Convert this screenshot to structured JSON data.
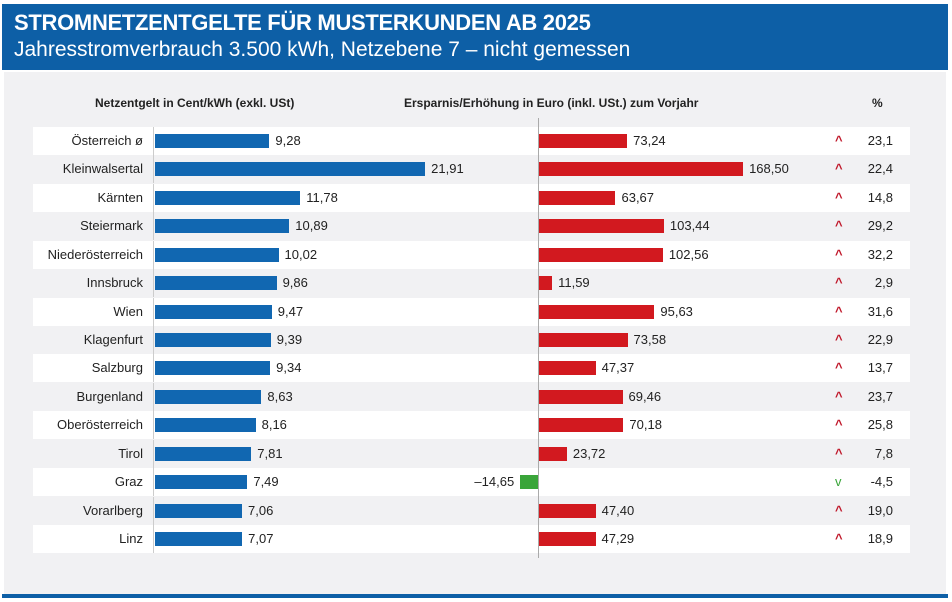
{
  "chart_data": {
    "type": "bar",
    "title": "STROMNETZENTGELTE FÜR MUSTERKUNDEN AB 2025",
    "subtitle": "Jahresstromverbrauch 3.500 kWh, Netzebene 7 – nicht gemessen",
    "column_headers": [
      "Netzentgelt in Cent/kWh (exkl. USt)",
      "Ersparnis/Erhöhung in Euro (inkl. USt.) zum Vorjahr",
      "%"
    ],
    "categories": [
      "Österreich ø",
      "Kleinwalsertal",
      "Kärnten",
      "Steiermark",
      "Niederösterreich",
      "Innsbruck",
      "Wien",
      "Klagenfurt",
      "Salzburg",
      "Burgenland",
      "Oberösterreich",
      "Tirol",
      "Graz",
      "Vorarlberg",
      "Linz"
    ],
    "series": [
      {
        "name": "Netzentgelt in Cent/kWh (exkl. USt)",
        "values": [
          9.28,
          21.91,
          11.78,
          10.89,
          10.02,
          9.86,
          9.47,
          9.39,
          9.34,
          8.63,
          8.16,
          7.81,
          7.49,
          7.06,
          7.07
        ],
        "labels": [
          "9,28",
          "21,91",
          "11,78",
          "10,89",
          "10,02",
          "9,86",
          "9,47",
          "9,39",
          "9,34",
          "8,63",
          "8,16",
          "7,81",
          "7,49",
          "7,06",
          "7,07"
        ],
        "color": "#1167b1"
      },
      {
        "name": "Ersparnis/Erhöhung in Euro (inkl. USt.) zum Vorjahr",
        "values": [
          73.24,
          168.5,
          63.67,
          103.44,
          102.56,
          11.59,
          95.63,
          73.58,
          47.37,
          69.46,
          70.18,
          23.72,
          -14.65,
          47.4,
          47.29
        ],
        "labels": [
          "73,24",
          "168,50",
          "63,67",
          "103,44",
          "102,56",
          "11,59",
          "95,63",
          "73,58",
          "47,37",
          "69,46",
          "70,18",
          "23,72",
          "–14,65",
          "47,40",
          "47,29"
        ],
        "color_positive": "#d2191f",
        "color_negative": "#3aa53a"
      },
      {
        "name": "%",
        "values": [
          23.1,
          22.4,
          14.8,
          29.2,
          32.2,
          2.9,
          31.6,
          22.9,
          13.7,
          23.7,
          25.8,
          7.8,
          -4.5,
          19.0,
          18.9
        ],
        "labels": [
          "23,1",
          "22,4",
          "14,8",
          "29,2",
          "32,2",
          "2,9",
          "31,6",
          "22,9",
          "13,7",
          "23,7",
          "25,8",
          "7,8",
          "-4,5",
          "19,0",
          "18,9"
        ]
      }
    ],
    "arrow_up": "^",
    "arrow_down": "v",
    "arrow_up_color": "#c0182a",
    "arrow_down_color": "#3aa53a",
    "header_color": "#0d5fa6"
  }
}
